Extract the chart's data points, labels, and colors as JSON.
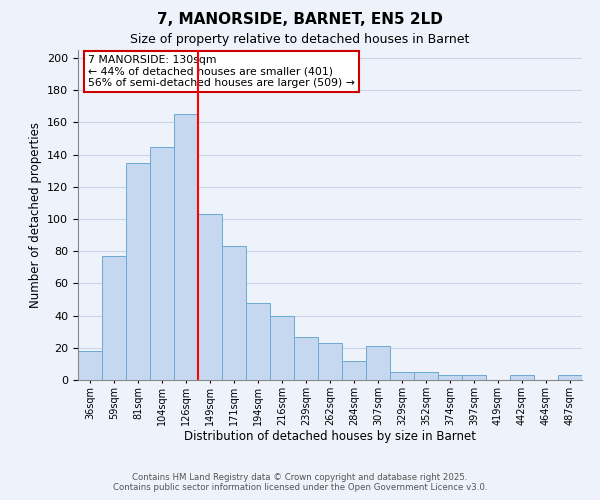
{
  "title": "7, MANORSIDE, BARNET, EN5 2LD",
  "subtitle": "Size of property relative to detached houses in Barnet",
  "xlabel": "Distribution of detached houses by size in Barnet",
  "ylabel": "Number of detached properties",
  "bar_color": "#c5d8f0",
  "bar_edge_color": "#6aaad4",
  "background_color": "#eef2fa",
  "grid_color": "#c8d4e8",
  "annotation_text": "7 MANORSIDE: 130sqm\n← 44% of detached houses are smaller (401)\n56% of semi-detached houses are larger (509) →",
  "annotation_box_color": "#ffffff",
  "annotation_box_edge": "#cc0000",
  "footer_line1": "Contains HM Land Registry data © Crown copyright and database right 2025.",
  "footer_line2": "Contains public sector information licensed under the Open Government Licence v3.0.",
  "categories": [
    "36sqm",
    "59sqm",
    "81sqm",
    "104sqm",
    "126sqm",
    "149sqm",
    "171sqm",
    "194sqm",
    "216sqm",
    "239sqm",
    "262sqm",
    "284sqm",
    "307sqm",
    "329sqm",
    "352sqm",
    "374sqm",
    "397sqm",
    "419sqm",
    "442sqm",
    "464sqm",
    "487sqm"
  ],
  "values": [
    18,
    77,
    135,
    145,
    165,
    103,
    83,
    48,
    40,
    27,
    23,
    12,
    21,
    5,
    5,
    3,
    3,
    0,
    3,
    0,
    3
  ],
  "ylim": [
    0,
    205
  ],
  "yticks": [
    0,
    20,
    40,
    60,
    80,
    100,
    120,
    140,
    160,
    180,
    200
  ],
  "red_line_index": 4,
  "figsize": [
    6.0,
    5.0
  ],
  "dpi": 100
}
